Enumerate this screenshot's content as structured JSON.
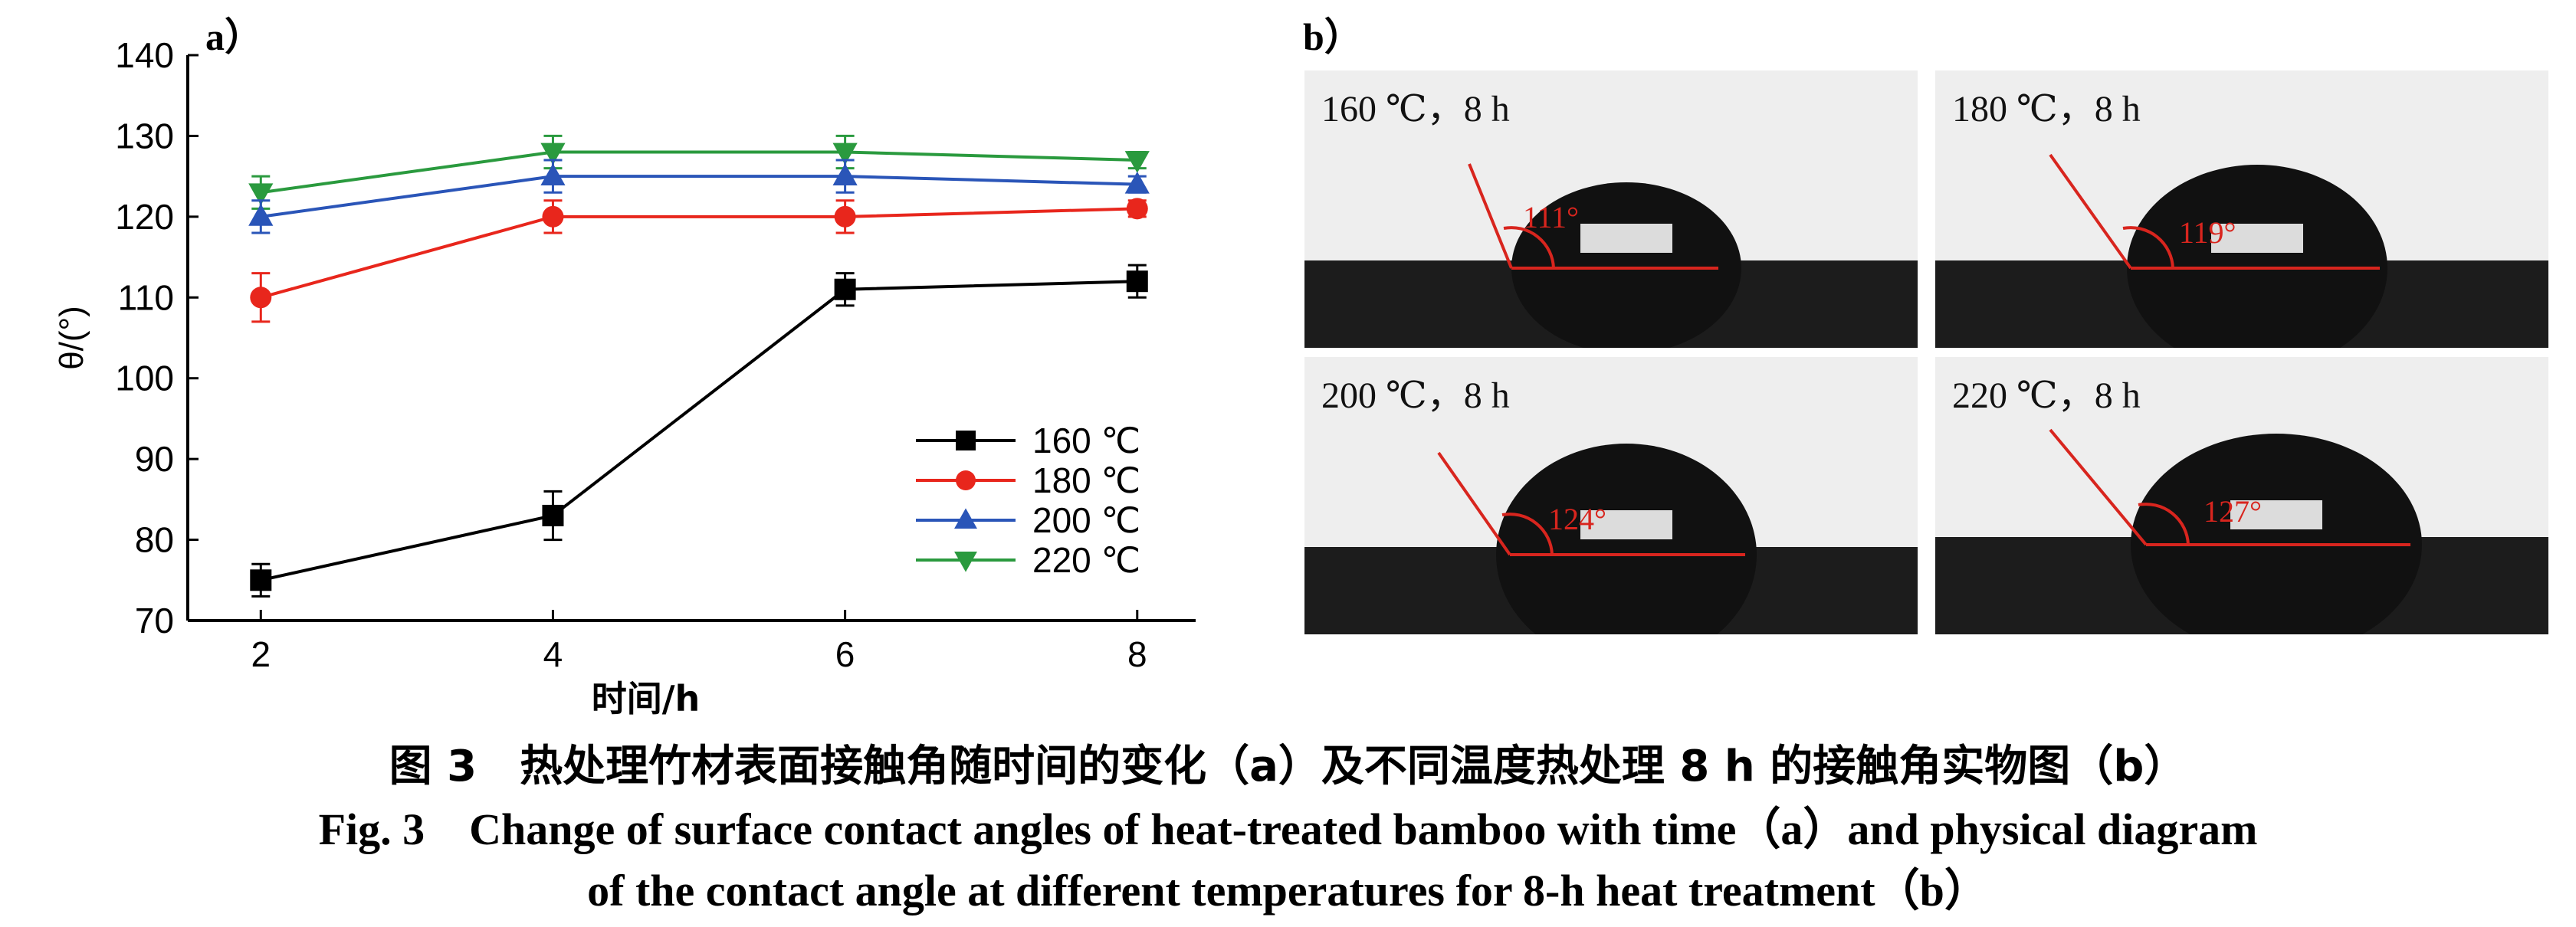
{
  "panel_a_label": "a）",
  "panel_b_label": "b）",
  "chart_data": {
    "type": "line",
    "x": [
      2,
      4,
      6,
      8
    ],
    "xlabel": "时间/h",
    "ylabel": "θ/(°)",
    "xlim": [
      1.5,
      8.4
    ],
    "ylim": [
      70,
      140
    ],
    "xticks": [
      2,
      4,
      6,
      8
    ],
    "yticks": [
      70,
      80,
      90,
      100,
      110,
      120,
      130,
      140
    ],
    "grid": false,
    "legend_position": "lower-right",
    "series": [
      {
        "name": "160 ℃",
        "values": [
          75,
          83,
          111,
          112
        ],
        "errors": [
          2,
          3,
          2,
          2
        ],
        "color": "#000000",
        "marker": "square"
      },
      {
        "name": "180 ℃",
        "values": [
          110,
          120,
          120,
          121
        ],
        "errors": [
          3,
          2,
          2,
          1
        ],
        "color": "#e8261c",
        "marker": "circle"
      },
      {
        "name": "200 ℃",
        "values": [
          120,
          125,
          125,
          124
        ],
        "errors": [
          2,
          2,
          2,
          1
        ],
        "color": "#2a55b8",
        "marker": "triangle-up"
      },
      {
        "name": "220 ℃",
        "values": [
          123,
          128,
          128,
          127
        ],
        "errors": [
          2,
          2,
          2,
          1
        ],
        "color": "#2a9a3e",
        "marker": "triangle-down"
      }
    ]
  },
  "photos": [
    {
      "label": "160 ℃，8 h",
      "angle": "111°"
    },
    {
      "label": "180 ℃，8 h",
      "angle": "119°"
    },
    {
      "label": "200 ℃，8 h",
      "angle": "124°"
    },
    {
      "label": "220 ℃，8 h",
      "angle": "127°"
    }
  ],
  "caption": {
    "cn": "图 3　热处理竹材表面接触角随时间的变化（a）及不同温度热处理 8 h 的接触角实物图（b）",
    "en_line1": "Fig. 3　Change of surface contact angles of heat-treated bamboo with time（a）and physical diagram",
    "en_line2": "of the contact angle at different temperatures for 8-h heat treatment（b）"
  },
  "colors": {
    "accent_red": "#d8251e",
    "substrate": "#1c1c1c",
    "droplet": "#111111"
  }
}
